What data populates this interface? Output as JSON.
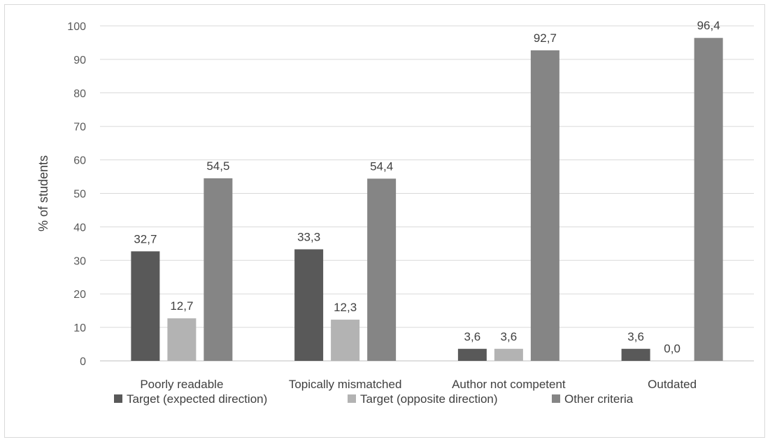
{
  "chart_data": {
    "type": "bar",
    "categories": [
      "Poorly readable",
      "Topically mismatched",
      "Author not competent",
      "Outdated"
    ],
    "series": [
      {
        "name": "Target (expected direction)",
        "color": "#595959",
        "values": [
          32.7,
          33.3,
          3.6,
          3.6
        ],
        "labels": [
          "32,7",
          "33,3",
          "3,6",
          "3,6"
        ]
      },
      {
        "name": "Target (opposite direction)",
        "color": "#b3b3b3",
        "values": [
          12.7,
          12.3,
          3.6,
          0.0
        ],
        "labels": [
          "12,7",
          "12,3",
          "3,6",
          "0,0"
        ]
      },
      {
        "name": "Other criteria",
        "color": "#858585",
        "values": [
          54.5,
          54.4,
          92.7,
          96.4
        ],
        "labels": [
          "54,5",
          "54,4",
          "92,7",
          "96,4"
        ]
      }
    ],
    "ylabel": "% of students",
    "xlabel": "",
    "ylim": [
      0,
      100
    ],
    "yticks": [
      0,
      10,
      20,
      30,
      40,
      50,
      60,
      70,
      80,
      90,
      100
    ],
    "grid": true,
    "legend": "bottom"
  }
}
